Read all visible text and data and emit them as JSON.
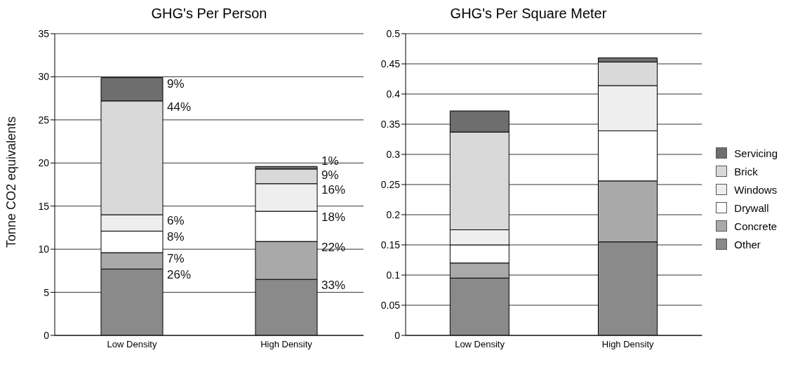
{
  "chart_data": [
    {
      "type": "bar",
      "title": "GHG's Per Person",
      "ylabel": "Tonne CO2 equivalents",
      "categories": [
        "Low Density",
        "High Density"
      ],
      "stacked": true,
      "grid": "y",
      "legend": false,
      "ylim": [
        0,
        35
      ],
      "yticks": [
        0,
        5,
        10,
        15,
        20,
        25,
        30,
        35
      ],
      "series": [
        {
          "color": "#8a8a8a",
          "values": [
            7.7,
            6.5
          ]
        },
        {
          "color": "#a9a9a9",
          "values": [
            1.9,
            4.4
          ]
        },
        {
          "color": "#ffffff",
          "values": [
            2.5,
            3.5
          ]
        },
        {
          "color": "#eeeeee",
          "values": [
            1.9,
            3.2
          ]
        },
        {
          "color": "#d9d9d9",
          "values": [
            13.2,
            1.7
          ]
        },
        {
          "color": "#6e6e6e",
          "values": [
            2.7,
            0.3
          ]
        }
      ],
      "annotations": [
        {
          "text": "26%",
          "x": "Low Density",
          "y": 7.7
        },
        {
          "text": "33%",
          "x": "High Density",
          "y": 6.5
        },
        {
          "text": "7%",
          "x": "Low Density",
          "y": 9.6
        },
        {
          "text": "22%",
          "x": "High Density",
          "y": 10.9
        },
        {
          "text": "8%",
          "x": "Low Density",
          "y": 12.1
        },
        {
          "text": "18%",
          "x": "High Density",
          "y": 14.4
        },
        {
          "text": "6%",
          "x": "Low Density",
          "y": 14
        },
        {
          "text": "16%",
          "x": "High Density",
          "y": 17.6
        },
        {
          "text": "44%",
          "x": "Low Density",
          "y": 27.2
        },
        {
          "text": "9%",
          "x": "High Density",
          "y": 19.3
        },
        {
          "text": "9%",
          "x": "Low Density",
          "y": 29.9
        },
        {
          "text": "1%",
          "x": "High Density",
          "y": 19.6
        }
      ]
    },
    {
      "type": "bar",
      "title": "GHG's Per Square Meter",
      "categories": [
        "Low Density",
        "High Density"
      ],
      "stacked": true,
      "grid": "y",
      "legend": "right",
      "ylim": [
        0,
        0.5
      ],
      "yticks": [
        0,
        0.05,
        0.1,
        0.15,
        0.2,
        0.25,
        0.3,
        0.35,
        0.4,
        0.45,
        0.5
      ],
      "series": [
        {
          "name": "Other",
          "color": "#8a8a8a",
          "values": [
            0.095,
            0.155
          ]
        },
        {
          "name": "Concrete",
          "color": "#a9a9a9",
          "values": [
            0.025,
            0.101
          ]
        },
        {
          "name": "Drywall",
          "color": "#ffffff",
          "values": [
            0.03,
            0.083
          ]
        },
        {
          "name": "Windows",
          "color": "#eeeeee",
          "values": [
            0.025,
            0.075
          ]
        },
        {
          "name": "Brick",
          "color": "#d9d9d9",
          "values": [
            0.162,
            0.039
          ]
        },
        {
          "name": "Servicing",
          "color": "#6e6e6e",
          "values": [
            0.035,
            0.007
          ]
        }
      ]
    }
  ]
}
